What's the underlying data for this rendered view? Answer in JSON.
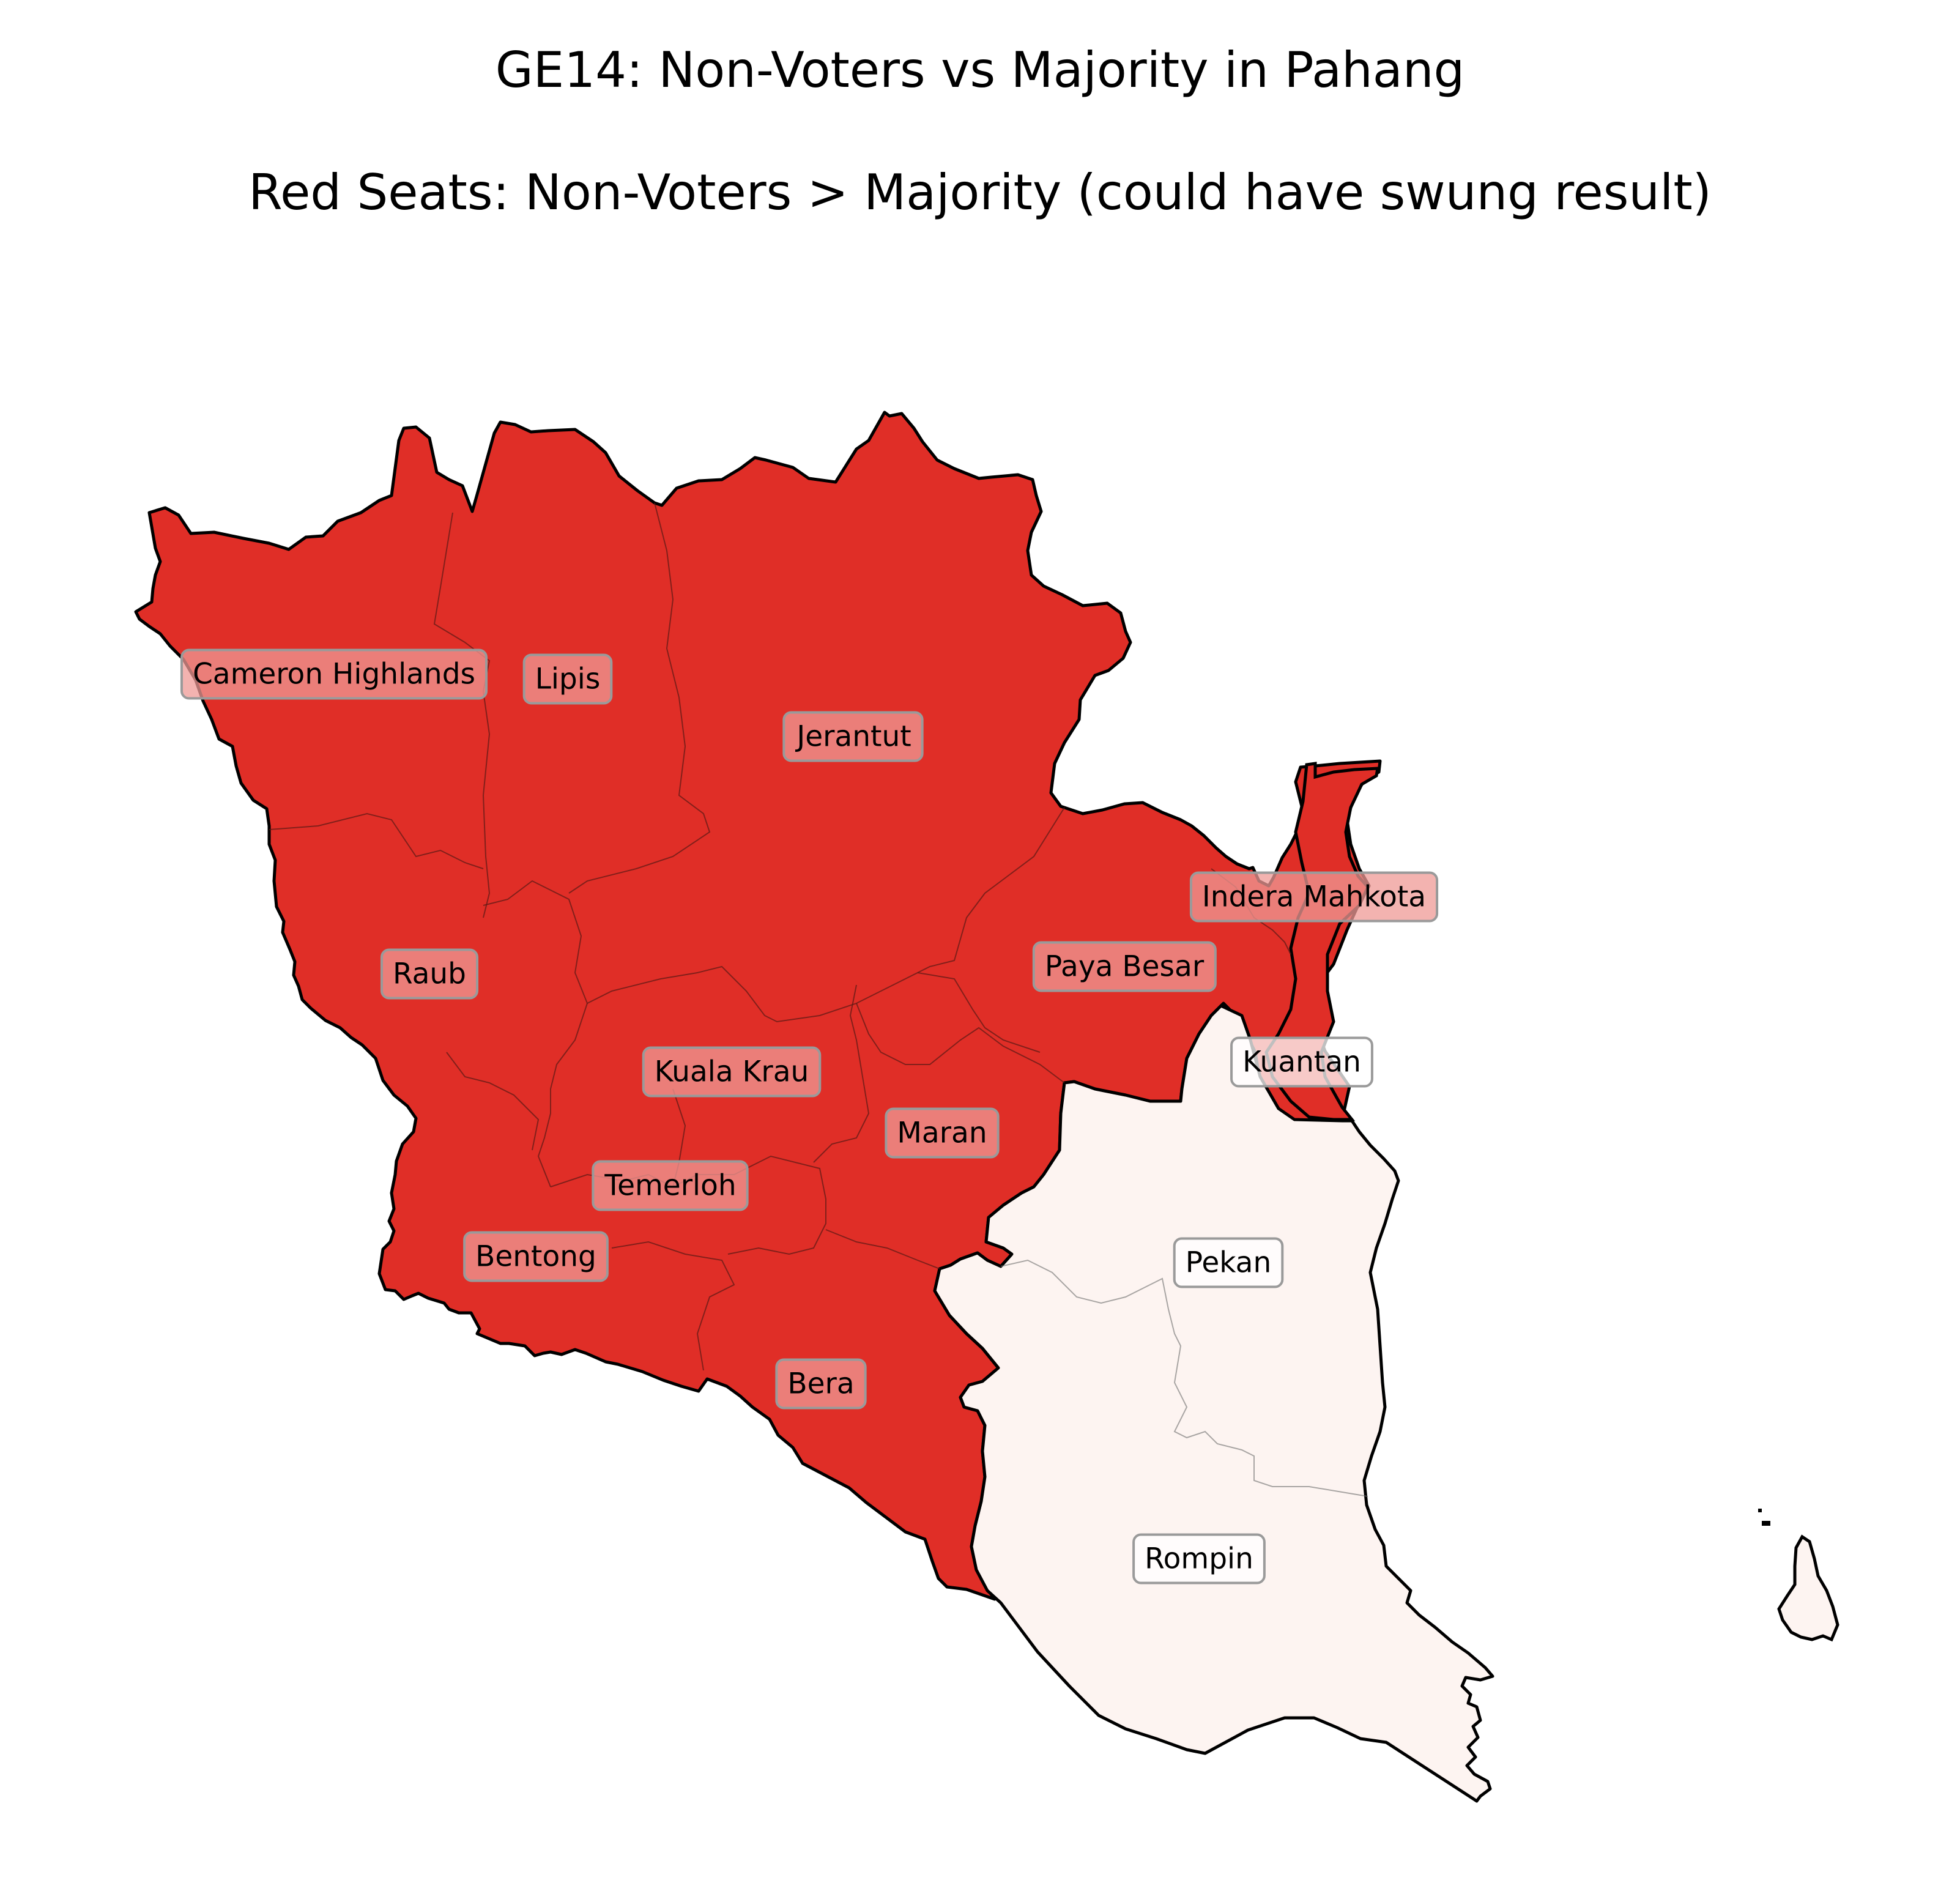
{
  "title": "GE14: Non-Voters vs Majority in Pahang",
  "subtitle": "Red Seats: Non-Voters > Majority (could have swung result)",
  "colors": {
    "swing": "#e02e27",
    "safe": "#fdf4f1",
    "outline": "#000000",
    "swing_label_bg": "#ef9a96",
    "safe_label_bg": "#ffffff"
  },
  "seats": [
    {
      "name": "Cameron Highlands",
      "non_voters_exceed_majority": true
    },
    {
      "name": "Lipis",
      "non_voters_exceed_majority": true
    },
    {
      "name": "Jerantut",
      "non_voters_exceed_majority": true
    },
    {
      "name": "Indera Mahkota",
      "non_voters_exceed_majority": true
    },
    {
      "name": "Paya Besar",
      "non_voters_exceed_majority": true
    },
    {
      "name": "Raub",
      "non_voters_exceed_majority": true
    },
    {
      "name": "Kuantan",
      "non_voters_exceed_majority": false
    },
    {
      "name": "Kuala Krau",
      "non_voters_exceed_majority": true
    },
    {
      "name": "Maran",
      "non_voters_exceed_majority": true
    },
    {
      "name": "Temerloh",
      "non_voters_exceed_majority": true
    },
    {
      "name": "Pekan",
      "non_voters_exceed_majority": false
    },
    {
      "name": "Bentong",
      "non_voters_exceed_majority": true
    },
    {
      "name": "Bera",
      "non_voters_exceed_majority": true
    },
    {
      "name": "Rompin",
      "non_voters_exceed_majority": false
    }
  ]
}
